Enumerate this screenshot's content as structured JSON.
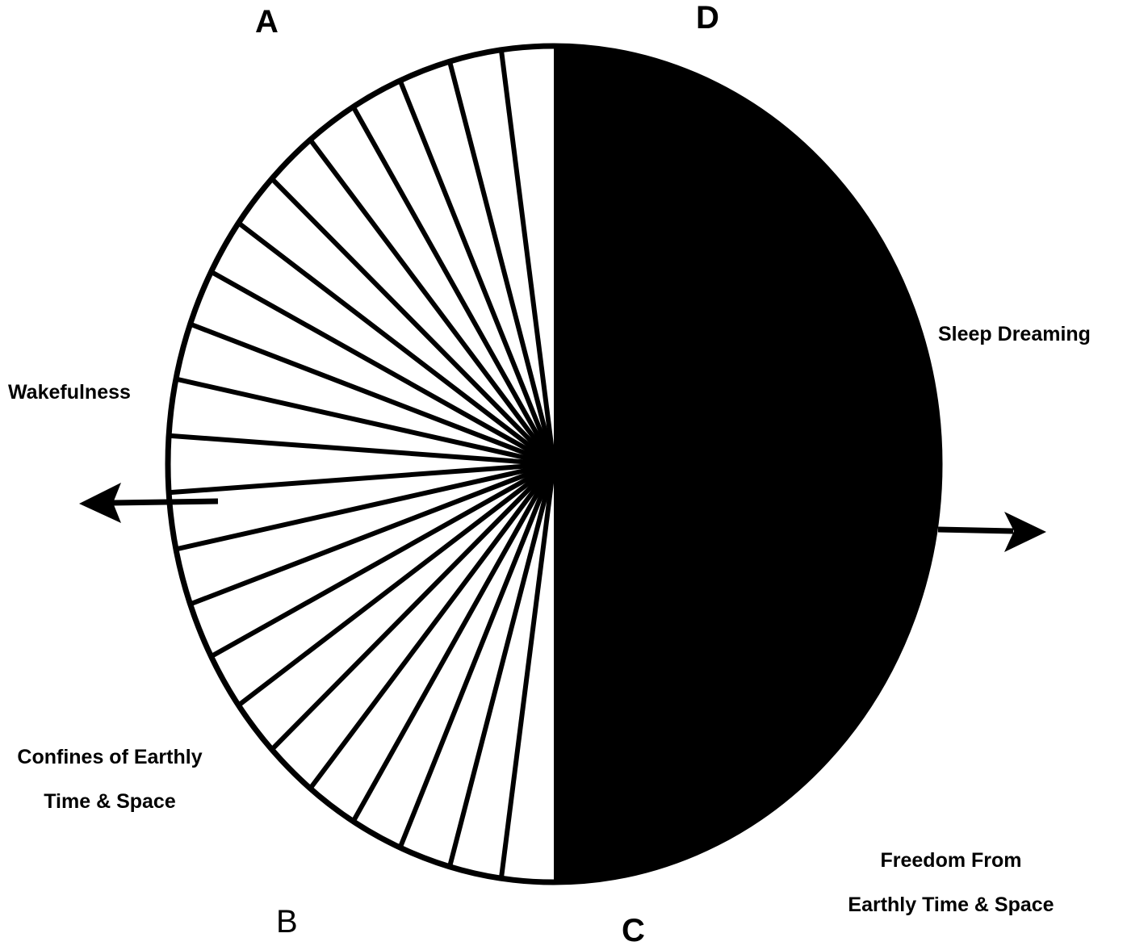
{
  "letters": {
    "a": "A",
    "b": "B",
    "c": "C",
    "d": "D"
  },
  "labels": {
    "wakefulness": "Wakefulness",
    "sleep_dreaming": "Sleep Dreaming",
    "confines": [
      "Confines of Earthly",
      "Time & Space"
    ],
    "freedom": [
      "Freedom From",
      "Earthly Time & Space"
    ]
  },
  "colors": {
    "ink": "#000000",
    "paper": "#ffffff"
  },
  "spokes_count": 22
}
